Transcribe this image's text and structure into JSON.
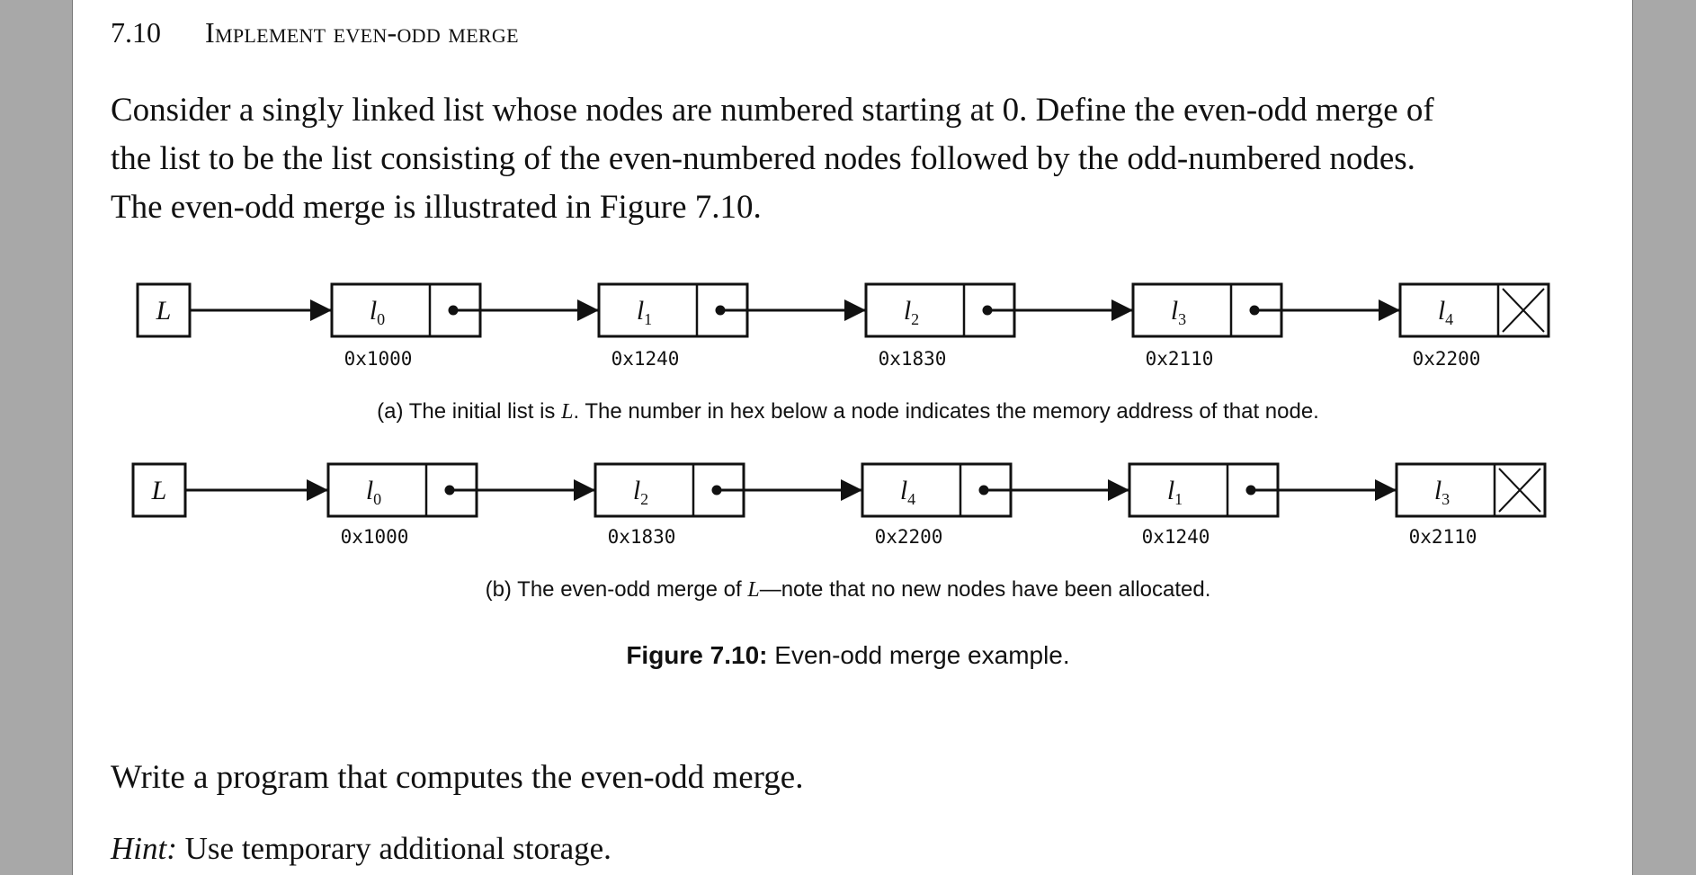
{
  "section": {
    "number": "7.10",
    "title": "Implement even-odd merge"
  },
  "intro_lines": [
    "Consider a singly linked list whose nodes are numbered starting at 0.  Define the even-odd merge of",
    "the list to be the list consisting of the even-numbered nodes followed by the odd-numbered nodes.",
    "The even-odd merge is illustrated in Figure 7.10."
  ],
  "figure": {
    "head_label": "L",
    "lists": [
      {
        "caption_tag": "(a)",
        "caption_text": "The initial list is ",
        "caption_var": "L",
        "caption_rest": ". The number in hex below a node indicates the memory address of that node.",
        "nodes": [
          {
            "letter": "l",
            "index": "0",
            "address": "0x1000"
          },
          {
            "letter": "l",
            "index": "1",
            "address": "0x1240"
          },
          {
            "letter": "l",
            "index": "2",
            "address": "0x1830"
          },
          {
            "letter": "l",
            "index": "3",
            "address": "0x2110"
          },
          {
            "letter": "l",
            "index": "4",
            "address": "0x2200"
          }
        ]
      },
      {
        "caption_tag": "(b)",
        "caption_text": "The even-odd merge of ",
        "caption_var": "L",
        "caption_rest": "—note that no new nodes have been allocated.",
        "nodes": [
          {
            "letter": "l",
            "index": "0",
            "address": "0x1000"
          },
          {
            "letter": "l",
            "index": "2",
            "address": "0x1830"
          },
          {
            "letter": "l",
            "index": "4",
            "address": "0x2200"
          },
          {
            "letter": "l",
            "index": "1",
            "address": "0x1240"
          },
          {
            "letter": "l",
            "index": "3",
            "address": "0x2110"
          }
        ]
      }
    ],
    "caption_label": "Figure 7.10:",
    "caption_text": " Even-odd merge example."
  },
  "prompt": "Write a program that computes the even-odd merge.",
  "hint_label": "Hint:",
  "hint_text": " Use temporary additional storage."
}
